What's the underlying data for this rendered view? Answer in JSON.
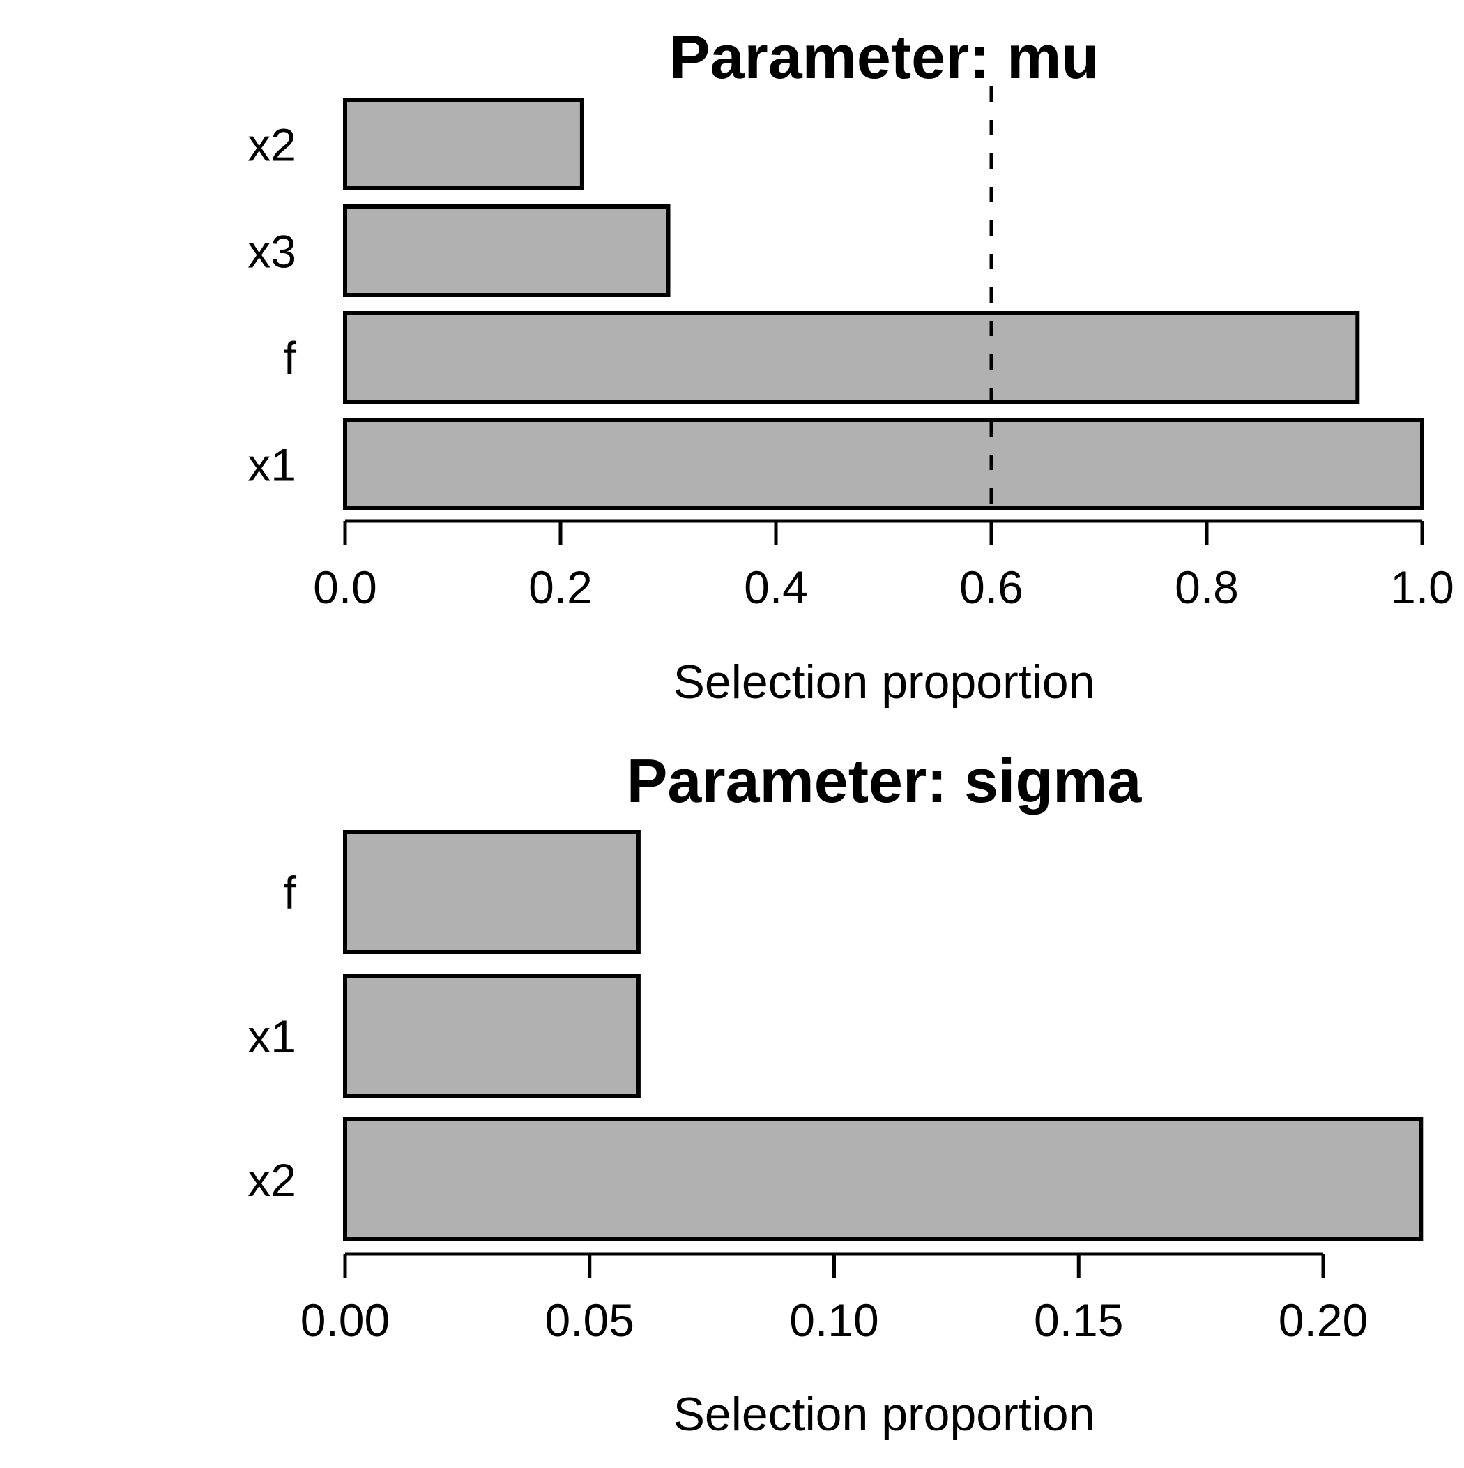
{
  "figure": {
    "background": "#ffffff",
    "bar_fill": "#b1b1b1",
    "bar_border": "#000000",
    "line_color": "#000000",
    "text_color": "#000000"
  },
  "chart_data": [
    {
      "type": "bar",
      "orientation": "horizontal",
      "title": "Parameter: mu",
      "xlabel": "Selection proportion",
      "categories": [
        "x2",
        "x3",
        "f",
        "x1"
      ],
      "values": [
        0.22,
        0.3,
        0.94,
        1.0
      ],
      "xlim": [
        0.0,
        1.0
      ],
      "xticks": [
        "0.0",
        "0.2",
        "0.4",
        "0.6",
        "0.8",
        "1.0"
      ],
      "xtick_values": [
        0.0,
        0.2,
        0.4,
        0.6,
        0.8,
        1.0
      ],
      "grid": "off",
      "legend": "none",
      "threshold_line": {
        "value": 0.6,
        "style": "dashed",
        "color": "#000000"
      }
    },
    {
      "type": "bar",
      "orientation": "horizontal",
      "title": "Parameter: sigma",
      "xlabel": "Selection proportion",
      "categories": [
        "f",
        "x1",
        "x2"
      ],
      "values": [
        0.06,
        0.06,
        0.22
      ],
      "xlim": [
        0.0,
        0.22
      ],
      "xticks": [
        "0.00",
        "0.05",
        "0.10",
        "0.15",
        "0.20"
      ],
      "xtick_values": [
        0.0,
        0.05,
        0.1,
        0.15,
        0.2
      ],
      "grid": "off",
      "legend": "none",
      "threshold_line": null
    }
  ]
}
